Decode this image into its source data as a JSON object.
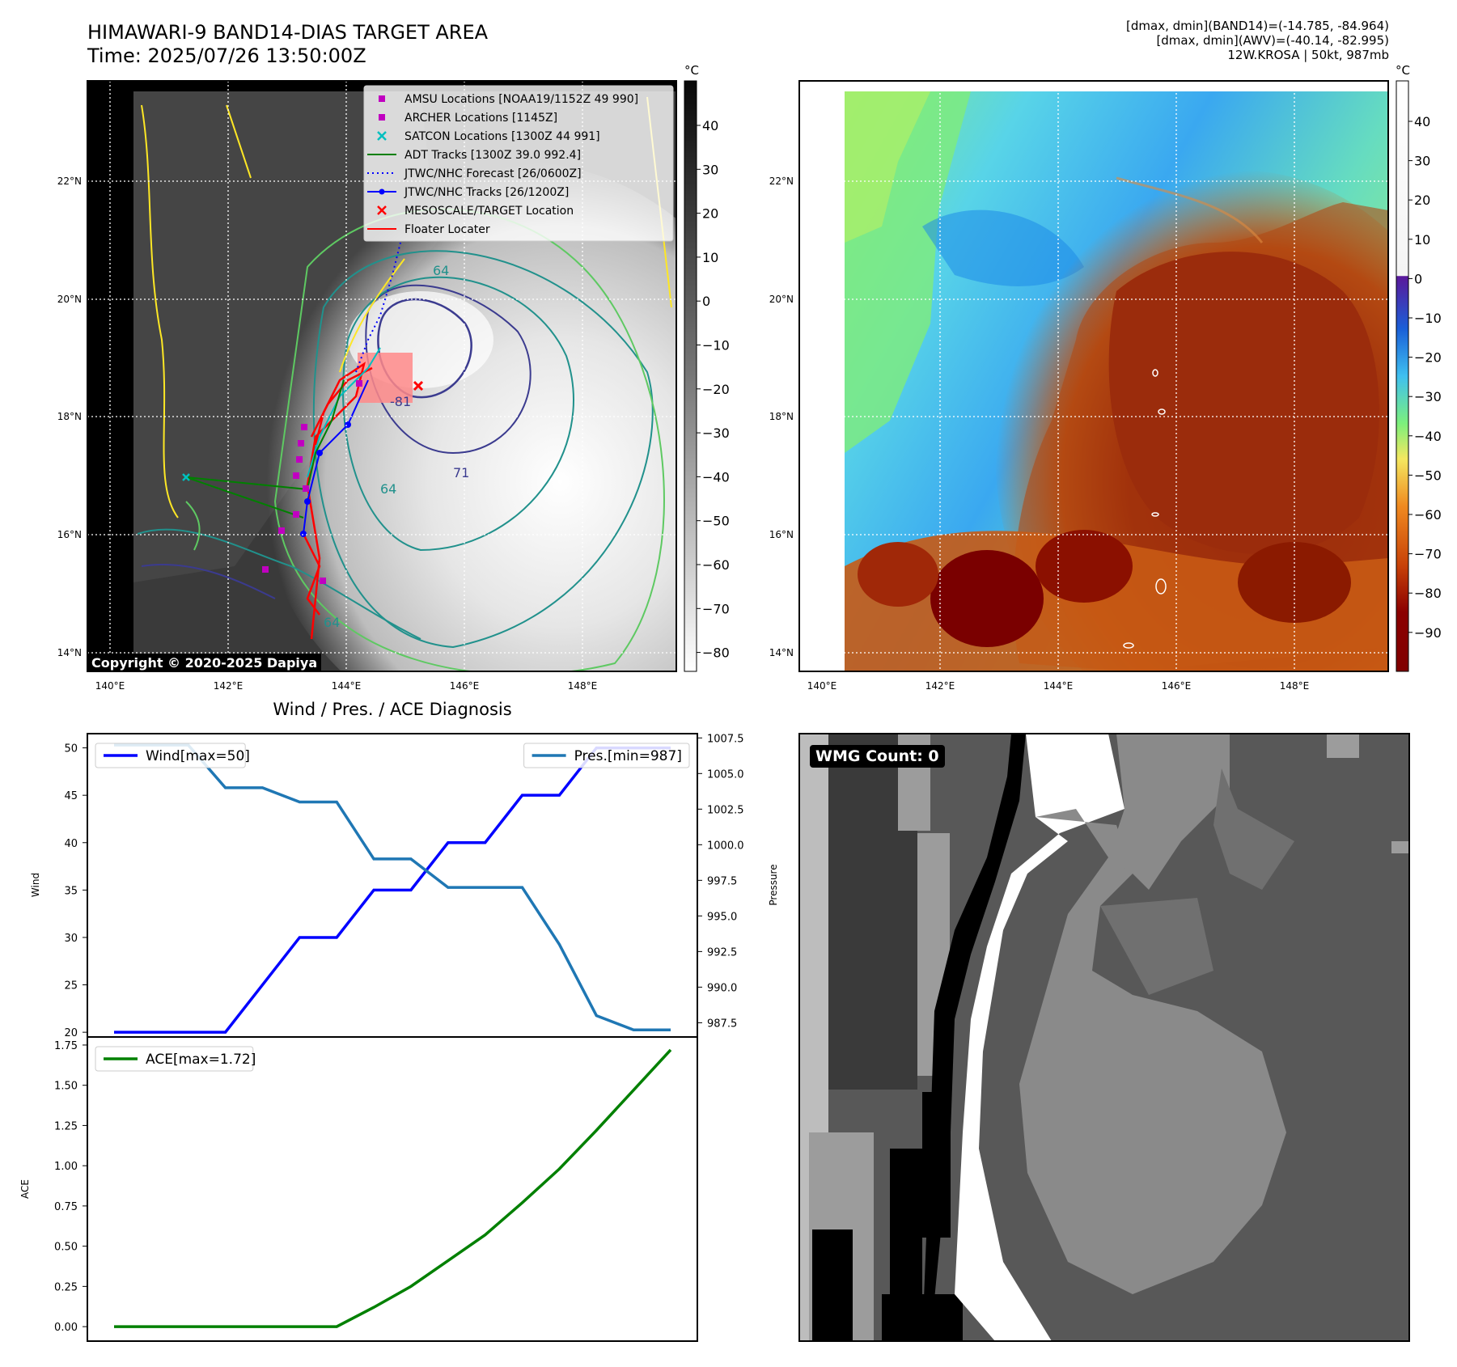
{
  "header": {
    "title_line1": "HIMAWARI-9 BAND14-DIAS TARGET AREA",
    "title_line2": "Time: 2025/07/26 13:50:00Z",
    "meta_line1": "[dmax, dmin](BAND14)=(-14.785, -84.964)",
    "meta_line2": "[dmax, dmin](AWV)=(-40.14, -82.995)",
    "meta_line3": "12W.KROSA | 50kt, 987mb"
  },
  "maps": {
    "lon_ticks": [
      "140°E",
      "142°E",
      "144°E",
      "146°E",
      "148°E"
    ],
    "lat_ticks": [
      "22°N",
      "20°N",
      "18°N",
      "16°N",
      "14°N"
    ],
    "copyright": "Copyright © 2020-2025 Dapiya",
    "contour_labels": [
      "-81",
      "64",
      "71",
      "64",
      "64"
    ],
    "left_colorbar": {
      "unit": "°C",
      "ticks": [
        "40",
        "30",
        "20",
        "10",
        "0",
        "−10",
        "−20",
        "−30",
        "−40",
        "−50",
        "−60",
        "−70",
        "−80"
      ]
    },
    "right_colorbar": {
      "unit": "°C",
      "ticks": [
        "40",
        "30",
        "20",
        "10",
        "0",
        "−10",
        "−20",
        "−30",
        "−40",
        "−50",
        "−60",
        "−70",
        "−80",
        "−90"
      ]
    },
    "legend": [
      {
        "label": "AMSU Locations [NOAA19/1152Z 49 990]",
        "marker": "square",
        "color": "#c000c0"
      },
      {
        "label": "ARCHER Locations [1145Z]",
        "marker": "square",
        "color": "#c000c0"
      },
      {
        "label": "SATCON Locations [1300Z 44 991]",
        "marker": "x",
        "color": "#00bfbf"
      },
      {
        "label": "ADT Tracks [1300Z 39.0 992.4]",
        "marker": "line",
        "color": "#008000"
      },
      {
        "label": "JTWC/NHC Forecast [26/0600Z]",
        "marker": "dotted",
        "color": "#0000ff"
      },
      {
        "label": "JTWC/NHC Tracks [26/1200Z]",
        "marker": "dotline",
        "color": "#0000ff"
      },
      {
        "label": "MESOSCALE/TARGET Location",
        "marker": "x",
        "color": "#ff0000"
      },
      {
        "label": "Floater Locater",
        "marker": "line",
        "color": "#ff0000"
      }
    ]
  },
  "wmg": {
    "label": "WMG Count: 0"
  },
  "chart_data": [
    {
      "type": "line",
      "title": "Wind / Pres. / ACE Diagnosis",
      "xlabel": "",
      "ylabel": "Wind",
      "ylabel_right": "Pressure",
      "ylim": [
        19.5,
        51.5
      ],
      "ylim_right": [
        986.5,
        1007.8
      ],
      "yticks": [
        20,
        25,
        30,
        35,
        40,
        45,
        50
      ],
      "yticks_right": [
        "987.5",
        "990.0",
        "992.5",
        "995.0",
        "997.5",
        "1000.0",
        "1002.5",
        "1005.0",
        "1007.5"
      ],
      "x": [
        0,
        1,
        2,
        3,
        4,
        5,
        6,
        7,
        8,
        9,
        10,
        11,
        12,
        13,
        14,
        15
      ],
      "series": [
        {
          "name": "Wind[max=50]",
          "axis": "left",
          "color": "#0000ff",
          "values": [
            20,
            20,
            20,
            20,
            25,
            30,
            30,
            35,
            35,
            40,
            40,
            45,
            45,
            50,
            50,
            50
          ]
        },
        {
          "name": "Pres.[min=987]",
          "axis": "right",
          "color": "#1f77b4",
          "values": [
            1007,
            1007,
            1007,
            1004,
            1004,
            1003,
            1003,
            999,
            999,
            997,
            997,
            997,
            993,
            988,
            987,
            987
          ]
        }
      ]
    },
    {
      "type": "line",
      "title": "",
      "xlabel": "",
      "ylabel": "ACE",
      "ylim": [
        -0.09,
        1.8
      ],
      "yticks": [
        "0.00",
        "0.25",
        "0.50",
        "0.75",
        "1.00",
        "1.25",
        "1.50",
        "1.75"
      ],
      "x": [
        0,
        1,
        2,
        3,
        4,
        5,
        6,
        7,
        8,
        9,
        10,
        11,
        12,
        13,
        14,
        15
      ],
      "series": [
        {
          "name": "ACE[max=1.72]",
          "color": "#008000",
          "values": [
            0,
            0,
            0,
            0,
            0,
            0,
            0,
            0.12,
            0.25,
            0.41,
            0.57,
            0.77,
            0.98,
            1.22,
            1.47,
            1.72
          ]
        }
      ]
    }
  ]
}
